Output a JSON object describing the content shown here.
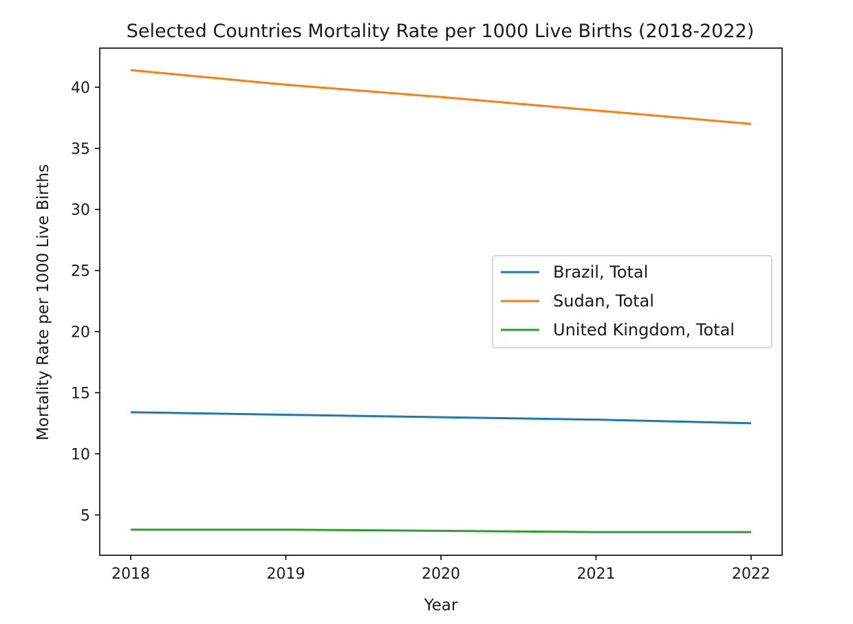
{
  "chart_data": {
    "type": "line",
    "title": "Selected Countries Mortality Rate per 1000 Live Births (2018-2022)",
    "xlabel": "Year",
    "ylabel": "Mortality Rate per 1000 Live Births",
    "x": [
      2018,
      2019,
      2020,
      2021,
      2022
    ],
    "x_tick_labels": [
      "2018",
      "2019",
      "2020",
      "2021",
      "2022"
    ],
    "xlim": [
      2017.8,
      2022.2
    ],
    "y_ticks": [
      5,
      10,
      15,
      20,
      25,
      30,
      35,
      40
    ],
    "y_tick_labels": [
      "5",
      "10",
      "15",
      "20",
      "25",
      "30",
      "35",
      "40"
    ],
    "ylim": [
      1.7,
      43.2
    ],
    "grid": false,
    "legend_position": "center-right",
    "series": [
      {
        "name": "Brazil, Total",
        "color": "#1f77b4",
        "values": [
          13.4,
          13.2,
          13.0,
          12.8,
          12.5
        ]
      },
      {
        "name": "Sudan, Total",
        "color": "#ff7f0e",
        "values": [
          41.4,
          40.2,
          39.2,
          38.1,
          37.0
        ]
      },
      {
        "name": "United Kingdom, Total",
        "color": "#2ca02c",
        "values": [
          3.8,
          3.8,
          3.7,
          3.6,
          3.6
        ]
      }
    ]
  }
}
